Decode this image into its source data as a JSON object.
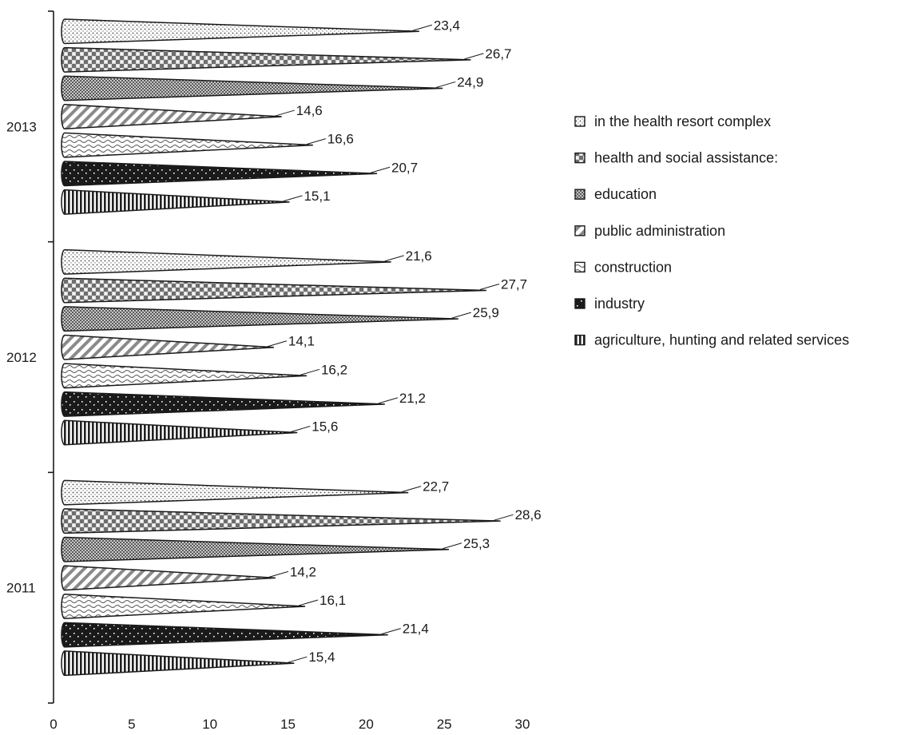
{
  "chart_data": {
    "type": "bar",
    "orientation": "horizontal",
    "bar_shape": "cone",
    "categories": [
      "2013",
      "2012",
      "2011"
    ],
    "series": [
      {
        "name": "in the health resort complex",
        "pattern": "dots-fine",
        "values": [
          23.4,
          21.6,
          22.7
        ]
      },
      {
        "name": "health and social assistance:",
        "pattern": "checker-large",
        "values": [
          26.7,
          27.7,
          28.6
        ]
      },
      {
        "name": "education",
        "pattern": "checker-small",
        "values": [
          24.9,
          25.9,
          25.3
        ]
      },
      {
        "name": "public administration",
        "pattern": "diagonal",
        "values": [
          14.6,
          14.1,
          14.2
        ]
      },
      {
        "name": "construction",
        "pattern": "wave",
        "values": [
          16.6,
          16.2,
          16.1
        ]
      },
      {
        "name": "industry",
        "pattern": "dark-dots",
        "values": [
          20.7,
          21.2,
          21.4
        ]
      },
      {
        "name": "agriculture, hunting and related services",
        "pattern": "vertical",
        "values": [
          15.1,
          15.6,
          15.4
        ]
      }
    ],
    "value_labels": {
      "2013": [
        "23,4",
        "26,7",
        "24,9",
        "14,6",
        "16,6",
        "20,7",
        "15,1"
      ],
      "2012": [
        "21,6",
        "27,7",
        "25,9",
        "14,1",
        "16,2",
        "21,2",
        "15,6"
      ],
      "2011": [
        "22,7",
        "28,6",
        "25,3",
        "14,2",
        "16,1",
        "21,4",
        "15,4"
      ]
    },
    "x_ticks": [
      "0",
      "5",
      "10",
      "15",
      "20",
      "25",
      "30"
    ],
    "xlim": [
      0,
      30
    ],
    "title": "",
    "xlabel": "",
    "ylabel": "",
    "grid": false,
    "legend_position": "right",
    "legend_order": [
      "in the health resort complex",
      "health and social assistance:",
      "education",
      "public administration",
      "construction",
      "industry",
      "agriculture, hunting and related services"
    ]
  }
}
